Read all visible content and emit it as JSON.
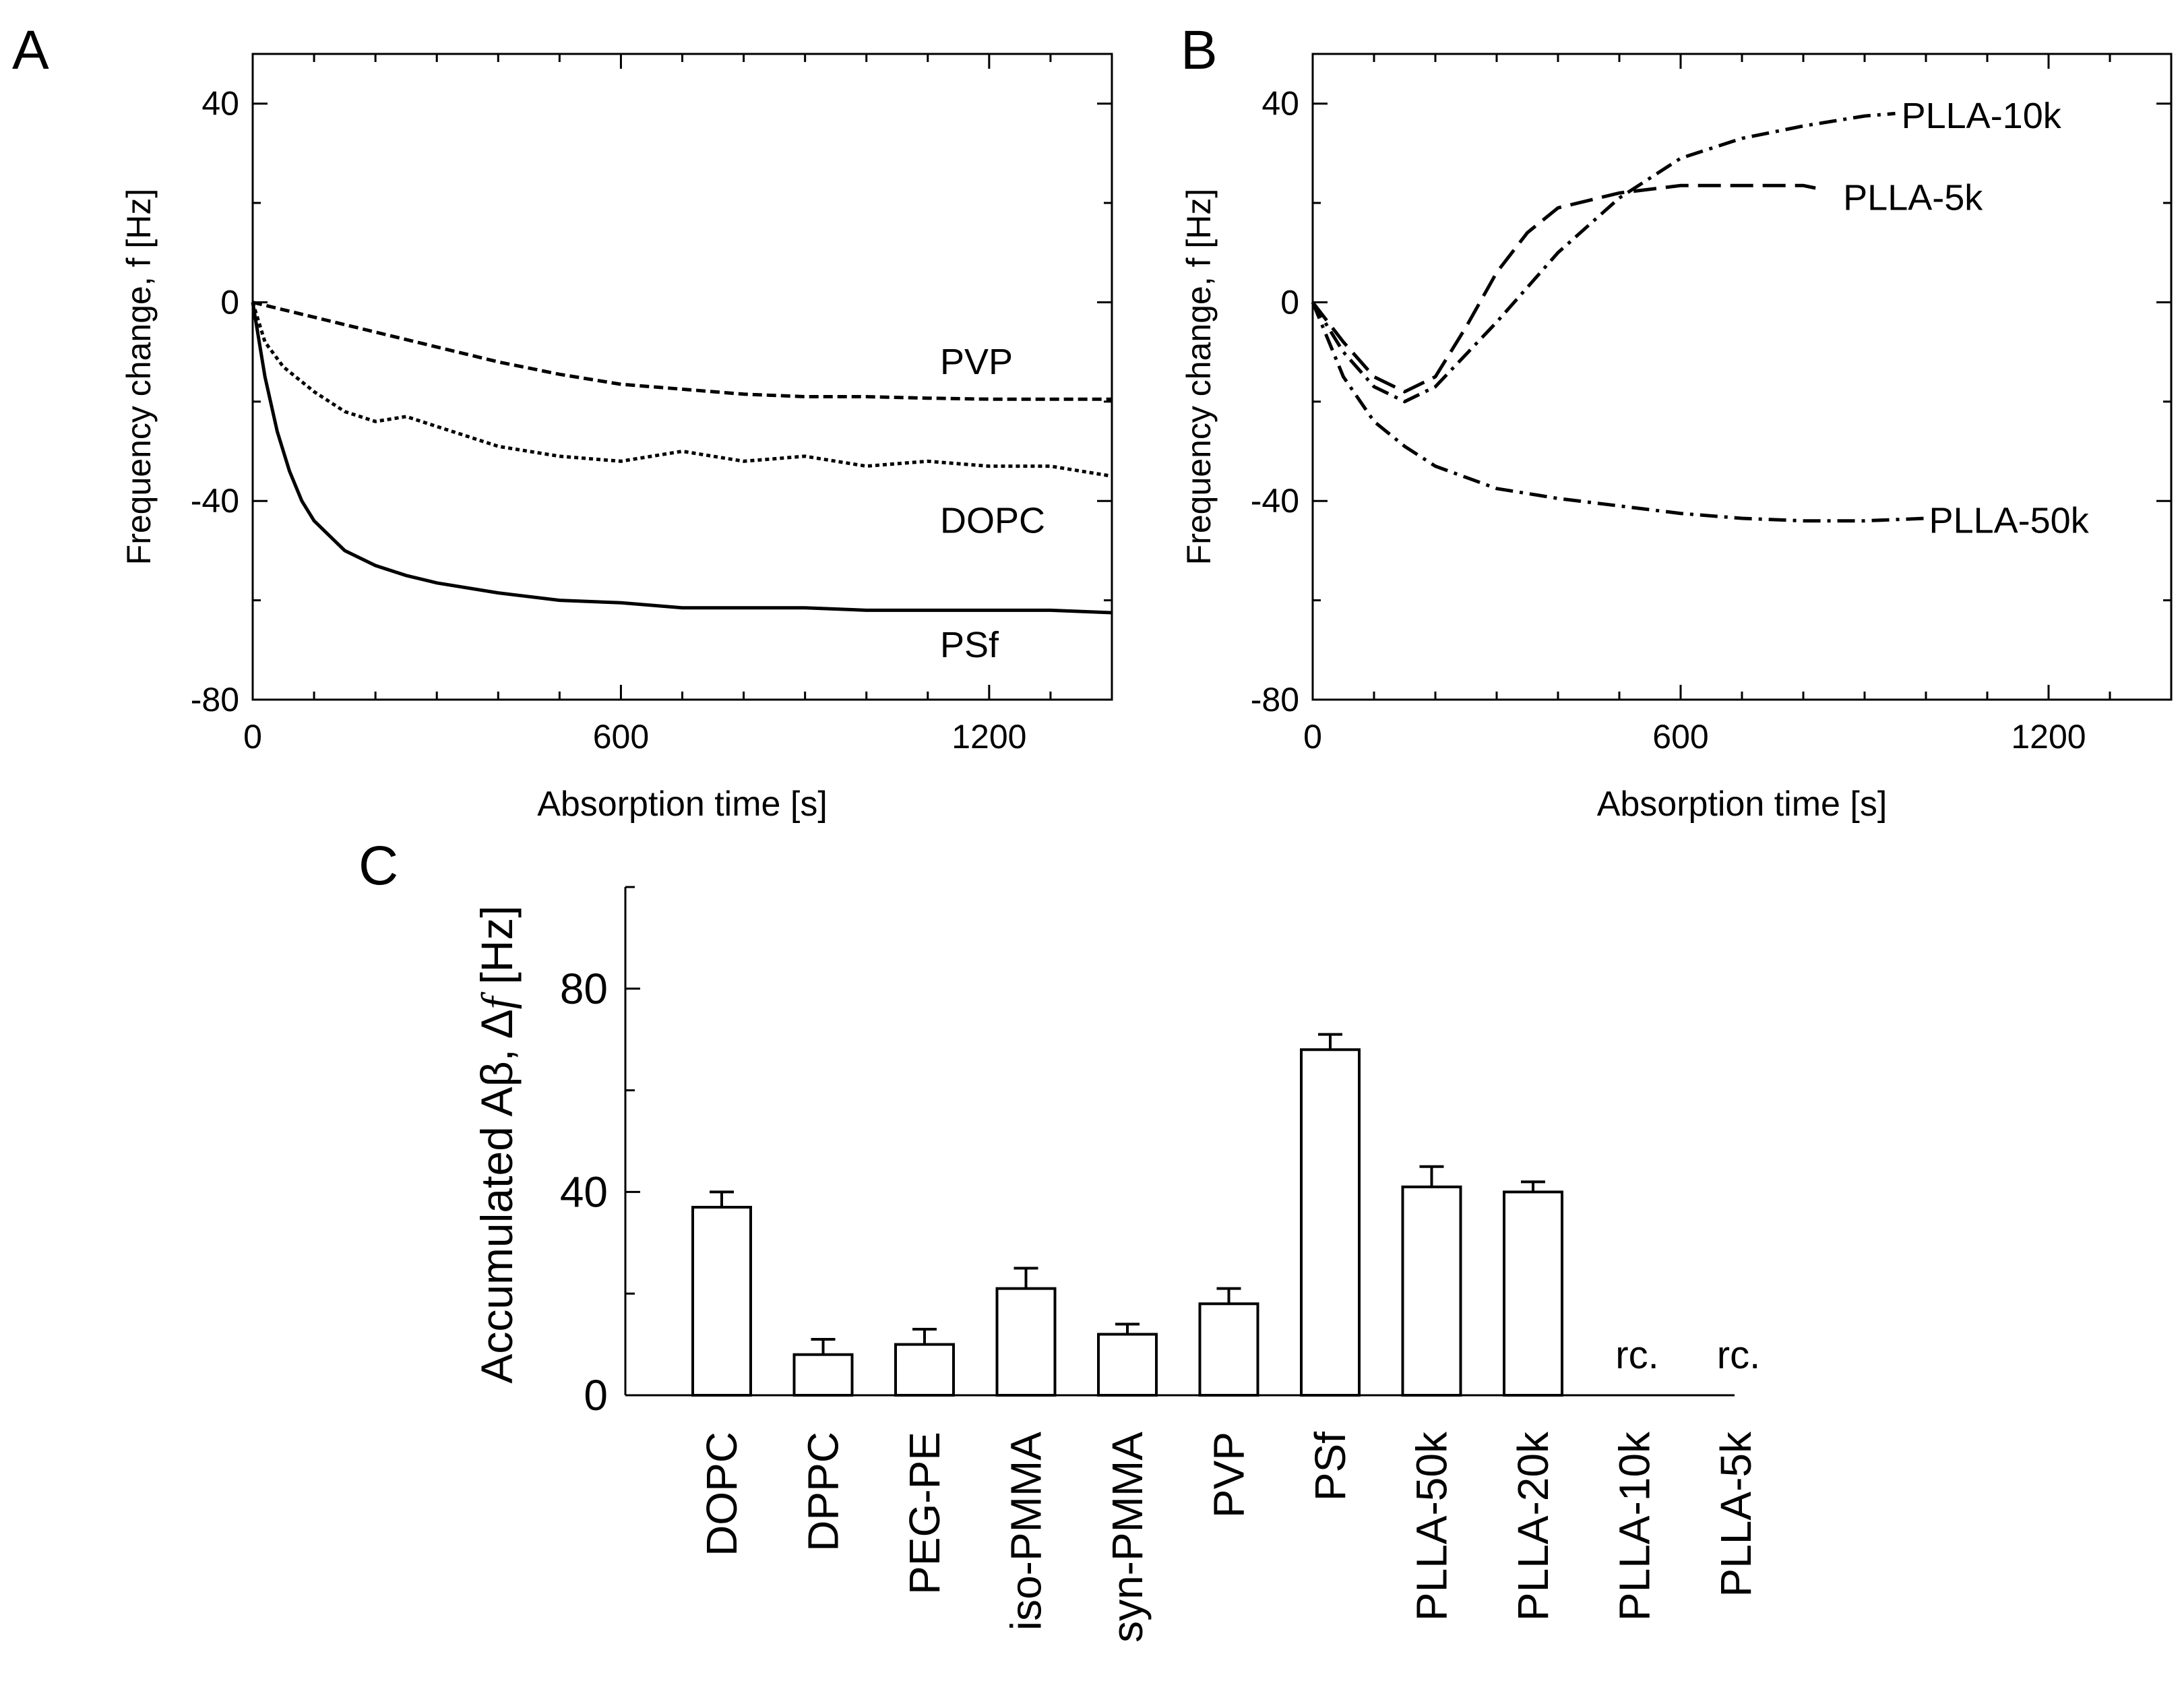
{
  "chart_data": [
    {
      "panel": "A",
      "type": "line",
      "xlabel": "Absorption time [s]",
      "ylabel": "Frequency change, f [Hz]",
      "xlim": [
        0,
        1400
      ],
      "ylim": [
        -80,
        50
      ],
      "xticks": [
        0,
        600,
        1200
      ],
      "yticks": [
        40,
        0,
        -40,
        -80
      ],
      "series": [
        {
          "name": "PVP",
          "style": "dashed",
          "x": [
            0,
            100,
            200,
            300,
            400,
            500,
            600,
            700,
            800,
            900,
            1000,
            1100,
            1200,
            1300,
            1400
          ],
          "y": [
            0,
            -3,
            -6,
            -9,
            -12,
            -14.5,
            -16.5,
            -17.5,
            -18.5,
            -19,
            -19,
            -19.3,
            -19.5,
            -19.5,
            -19.5
          ]
        },
        {
          "name": "DOPC",
          "style": "dotted",
          "x": [
            0,
            20,
            50,
            100,
            150,
            200,
            250,
            300,
            350,
            400,
            500,
            600,
            700,
            800,
            900,
            1000,
            1100,
            1200,
            1300,
            1400
          ],
          "y": [
            0,
            -8,
            -13,
            -18,
            -22,
            -24,
            -23,
            -25,
            -27,
            -29,
            -31,
            -32,
            -30,
            -32,
            -31,
            -33,
            -32,
            -33,
            -33,
            -35
          ]
        },
        {
          "name": "PSf",
          "style": "solid",
          "x": [
            0,
            20,
            40,
            60,
            80,
            100,
            150,
            200,
            250,
            300,
            400,
            500,
            600,
            700,
            800,
            900,
            1000,
            1100,
            1200,
            1300,
            1400
          ],
          "y": [
            0,
            -15,
            -26,
            -34,
            -40,
            -44,
            -50,
            -53,
            -55,
            -56.5,
            -58.5,
            -60,
            -60.5,
            -61.5,
            -61.5,
            -61.5,
            -62,
            -62,
            -62,
            -62,
            -62.5
          ]
        }
      ],
      "labels": [
        {
          "text": "PVP",
          "x": 1120,
          "y": -12
        },
        {
          "text": "DOPC",
          "x": 1120,
          "y": -44
        },
        {
          "text": "PSf",
          "x": 1120,
          "y": -69
        }
      ]
    },
    {
      "panel": "B",
      "type": "line",
      "xlabel": "Absorption time [s]",
      "ylabel": "Frequency change, f [Hz]",
      "xlim": [
        0,
        1400
      ],
      "ylim": [
        -80,
        50
      ],
      "xticks": [
        0,
        600,
        1200
      ],
      "yticks": [
        40,
        0,
        -40,
        -80
      ],
      "series": [
        {
          "name": "PLLA-10k",
          "style": "dash-dot",
          "x": [
            0,
            50,
            100,
            150,
            200,
            300,
            400,
            500,
            600,
            700,
            800,
            900,
            950
          ],
          "y": [
            0,
            -10,
            -17,
            -20,
            -17,
            -4,
            10,
            21,
            29,
            33,
            35.5,
            37.5,
            38
          ]
        },
        {
          "name": "PLLA-5k",
          "style": "long-dash",
          "x": [
            0,
            50,
            100,
            150,
            200,
            250,
            300,
            350,
            400,
            500,
            600,
            700,
            800,
            820
          ],
          "y": [
            0,
            -8,
            -15,
            -18,
            -15,
            -5,
            6,
            14,
            19,
            22,
            23.5,
            23.5,
            23.5,
            23
          ]
        },
        {
          "name": "PLLA-50k",
          "style": "dash-dot",
          "x": [
            0,
            50,
            100,
            150,
            200,
            300,
            400,
            500,
            600,
            700,
            800,
            900,
            1000
          ],
          "y": [
            0,
            -15,
            -24,
            -29,
            -33,
            -37.5,
            -39.5,
            -41,
            -42.5,
            -43.5,
            -44,
            -44,
            -43.5
          ]
        }
      ],
      "labels": [
        {
          "text": "PLLA-10k",
          "x": 960,
          "y": 37.5
        },
        {
          "text": "PLLA-5k",
          "x": 865,
          "y": 21
        },
        {
          "text": "PLLA-50k",
          "x": 1005,
          "y": -44
        }
      ]
    },
    {
      "panel": "C",
      "type": "bar",
      "ylabel_prefix": "Accumulated Aβ, ",
      "ylabel_delta": "Δ",
      "ylabel_f": "f",
      "ylabel_suffix": " [Hz]",
      "ylim": [
        0,
        100
      ],
      "yticks": [
        0,
        40,
        80
      ],
      "categories": [
        "DOPC",
        "DPPC",
        "PEG-PE",
        "iso-PMMA",
        "syn-PMMA",
        "PVP",
        "PSf",
        "PLLA-50k",
        "PLLA-20k",
        "PLLA-10k",
        "PLLA-5k"
      ],
      "values": [
        37,
        8,
        10,
        21,
        12,
        18,
        68,
        41,
        40,
        null,
        null
      ],
      "errors": [
        3,
        3,
        3,
        4,
        2,
        3,
        3,
        4,
        2,
        null,
        null
      ],
      "annotations": [
        "",
        "",
        "",
        "",
        "",
        "",
        "",
        "",
        "",
        "rc.",
        "rc."
      ]
    }
  ],
  "panel_letters": [
    "A",
    "B",
    "C"
  ]
}
